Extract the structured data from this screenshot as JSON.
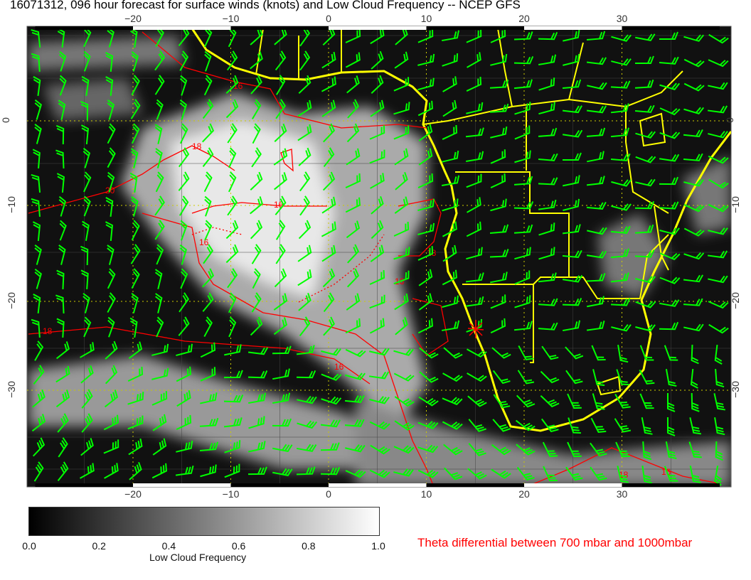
{
  "title": "16071312, 096 hour forecast for surface winds (knots) and Low Cloud Frequency -- NCEP GFS",
  "map": {
    "lon_ticks": [
      "−20",
      "−10",
      "0",
      "10",
      "20",
      "30"
    ],
    "lon_values": [
      -20,
      -10,
      0,
      10,
      20,
      30
    ],
    "lat_ticks": [
      "0",
      "−10",
      "−20",
      "−30"
    ],
    "lat_values": [
      0,
      -10,
      -20,
      -30
    ],
    "lon_range": [
      -31,
      41
    ],
    "lat_range": [
      10,
      -40
    ],
    "contour_labels": [
      "16",
      "18",
      "20",
      "16",
      "16",
      "18",
      "16",
      "18",
      "16",
      "18",
      "16"
    ],
    "colors": {
      "coastline": "#ffff00",
      "wind_barbs": "#00ff00",
      "contours": "#ff0000",
      "grid": "#cccc00"
    }
  },
  "colorbar": {
    "ticks": [
      "0.0",
      "0.2",
      "0.4",
      "0.6",
      "0.8",
      "1.0"
    ],
    "label": "Low Cloud Frequency",
    "range": [
      0.0,
      1.0
    ]
  },
  "legend": {
    "theta_text": "Theta differential between 700 mbar and 1000mbar"
  }
}
